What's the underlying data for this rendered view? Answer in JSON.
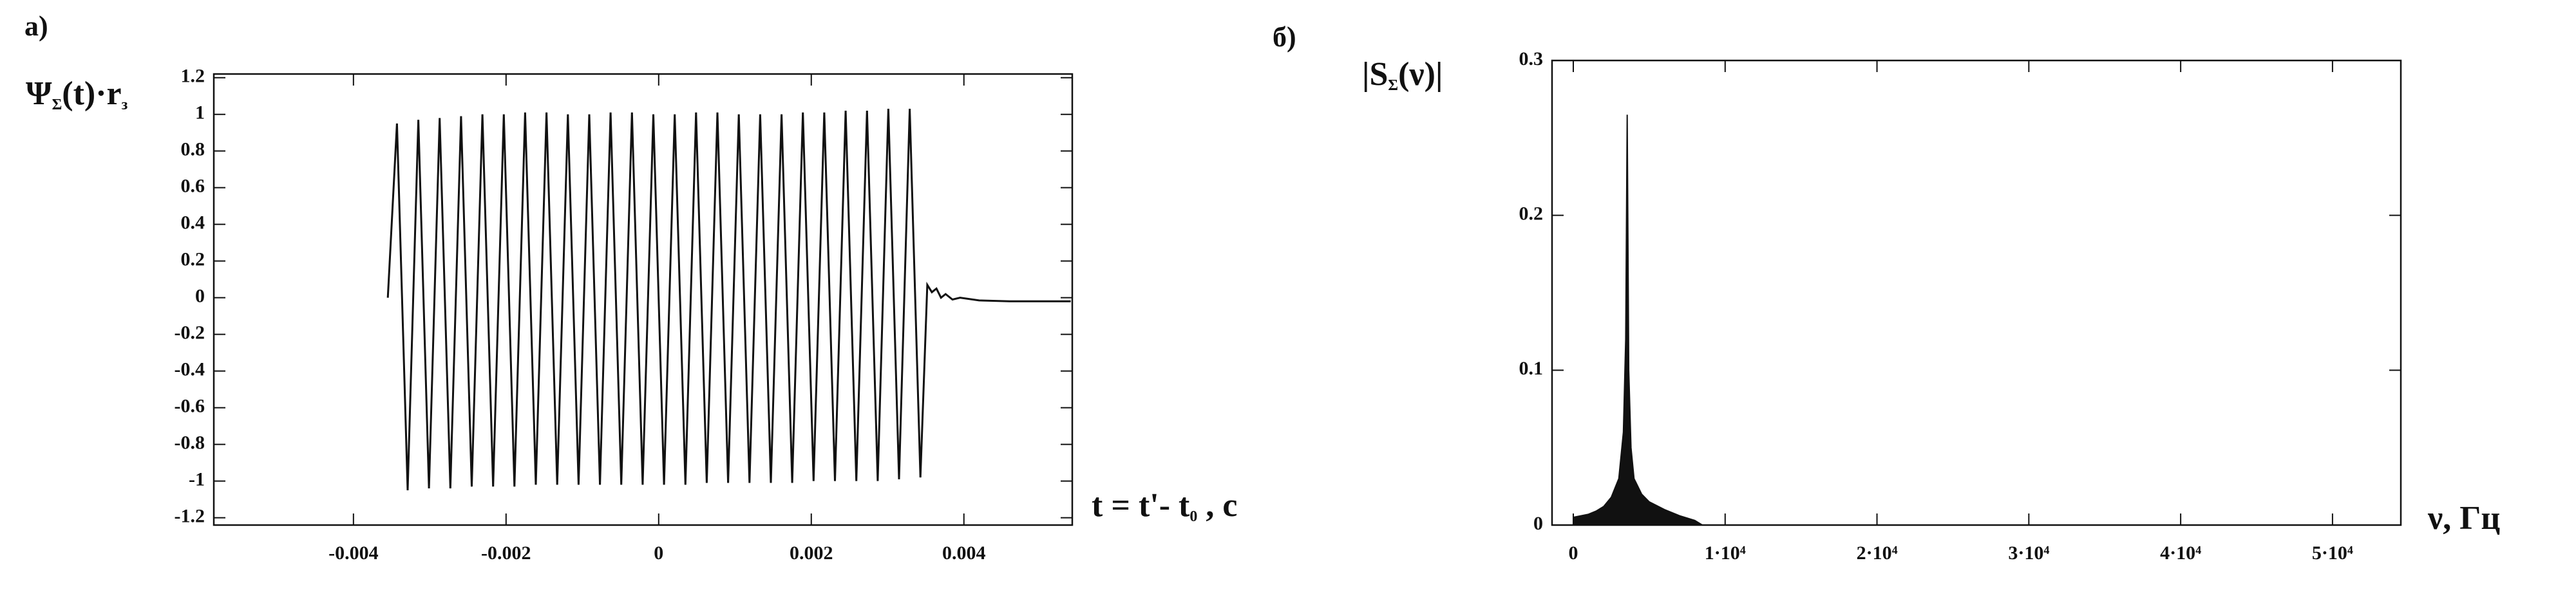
{
  "chart_data": [
    {
      "type": "line",
      "panel": "а)",
      "y_label": [
        "Ψ",
        "Σ",
        "(t)·r",
        "з"
      ],
      "x_label": [
        "t = t'- t",
        "0",
        " , c"
      ],
      "x": [
        -0.00355,
        -0.00343,
        -0.00329,
        -0.00315,
        -0.00301,
        -0.00287,
        -0.00273,
        -0.00259,
        -0.00245,
        -0.00231,
        -0.00217,
        -0.00203,
        -0.00189,
        -0.00175,
        -0.00161,
        -0.00147,
        -0.00133,
        -0.00119,
        -0.00105,
        -0.00091,
        -0.00077,
        -0.00063,
        -0.00049,
        -0.00035,
        -0.00021,
        -7e-05,
        7e-05,
        0.00021,
        0.00035,
        0.00049,
        0.00063,
        0.00077,
        0.00091,
        0.00105,
        0.00119,
        0.00133,
        0.00147,
        0.00161,
        0.00175,
        0.00189,
        0.00203,
        0.00217,
        0.00231,
        0.00245,
        0.00259,
        0.00273,
        0.00287,
        0.00301,
        0.00315,
        0.00329,
        0.00343,
        0.00352,
        0.00358,
        0.00364,
        0.0037,
        0.00376,
        0.00385,
        0.00395,
        0.0042,
        0.0046,
        0.0054
      ],
      "values": [
        0,
        0.95,
        -1.05,
        0.97,
        -1.04,
        0.98,
        -1.04,
        0.99,
        -1.03,
        1.0,
        -1.03,
        1.0,
        -1.03,
        1.01,
        -1.02,
        1.01,
        -1.02,
        1.0,
        -1.02,
        1.0,
        -1.02,
        1.01,
        -1.02,
        1.01,
        -1.02,
        1.0,
        -1.02,
        1.0,
        -1.02,
        1.01,
        -1.01,
        1.01,
        -1.01,
        1.0,
        -1.01,
        1.0,
        -1.01,
        1.0,
        -1.01,
        1.01,
        -1.0,
        1.01,
        -1.0,
        1.02,
        -1.0,
        1.02,
        -1.0,
        1.03,
        -0.99,
        1.03,
        -0.98,
        0.07,
        0.03,
        0.05,
        0.0,
        0.02,
        -0.01,
        0.0,
        -0.015,
        -0.02,
        -0.02
      ],
      "color": "#111111",
      "xlim": [
        -0.00583,
        0.00542
      ],
      "xticks": [
        -0.004,
        -0.002,
        0,
        0.002,
        0.004
      ],
      "ylim": [
        -1.24,
        1.22
      ],
      "yticks": [
        1.2,
        1,
        0.8,
        0.6,
        0.4,
        0.2,
        0,
        -0.2,
        -0.4,
        -0.6,
        -0.8,
        -1,
        -1.2
      ]
    },
    {
      "type": "area",
      "panel": "б)",
      "y_label": [
        "|S",
        "Σ",
        "(ν)|"
      ],
      "x_label": [
        "ν, Гц"
      ],
      "x": [
        0,
        500,
        1000,
        1500,
        2000,
        2500,
        3000,
        3300,
        3450,
        3550,
        3650,
        3800,
        4000,
        4500,
        5000,
        6000,
        7000,
        8000,
        8500
      ],
      "values": [
        0.005,
        0.006,
        0.007,
        0.009,
        0.012,
        0.018,
        0.03,
        0.06,
        0.12,
        0.265,
        0.1,
        0.05,
        0.03,
        0.02,
        0.015,
        0.01,
        0.006,
        0.003,
        0
      ],
      "color": "#111111",
      "xlim": [
        -1400,
        54500
      ],
      "xticks": [
        0,
        {
          "value": 10000,
          "label": "1·10⁴"
        },
        {
          "value": 20000,
          "label": "2·10⁴"
        },
        {
          "value": 30000,
          "label": "3·10⁴"
        },
        {
          "value": 40000,
          "label": "4·10⁴"
        },
        {
          "value": 50000,
          "label": "5·10⁴"
        }
      ],
      "ylim": [
        0,
        0.3
      ],
      "yticks": [
        0,
        0.1,
        0.2,
        0.3
      ]
    }
  ]
}
